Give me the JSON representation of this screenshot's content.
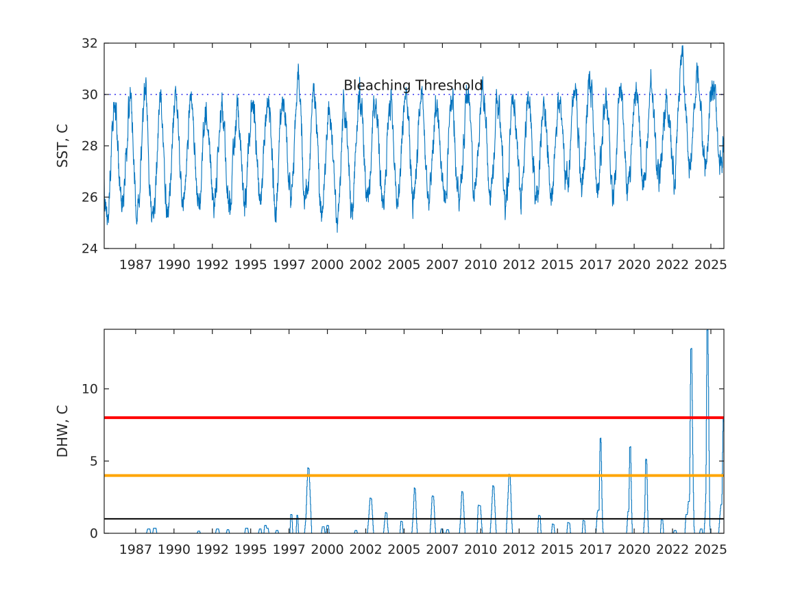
{
  "page": {
    "background": "#ffffff",
    "text_color": "#262626",
    "axis_color": "#1a1a1a"
  },
  "chart_data": [
    {
      "type": "line",
      "panel": "top",
      "title": "",
      "xlabel": "",
      "ylabel": "SST, C",
      "xlim": [
        1985.45,
        2025.85
      ],
      "ylim": [
        24,
        32
      ],
      "yticks": [
        24,
        26,
        28,
        30,
        32
      ],
      "xtick_positions": [
        1987.5,
        1990,
        1992.5,
        1995,
        1997.5,
        2000,
        2002.5,
        2005,
        2007.5,
        2010,
        2012.5,
        2015,
        2017.5,
        2020,
        2022.5,
        2025
      ],
      "xtick_labels": [
        "1987",
        "1990",
        "1992",
        "1995",
        "1997",
        "2000",
        "2002",
        "2005",
        "2007",
        "2010",
        "2012",
        "2015",
        "2017",
        "2020",
        "2022",
        "2025"
      ],
      "grid": false,
      "legend": null,
      "annotations": [
        {
          "text": "Bleaching Threshold",
          "x": 2005.6,
          "y": 30.17
        }
      ],
      "reference_lines": [
        {
          "y": 30,
          "color": "#4d4df0",
          "style": "dotted",
          "width": 1.8,
          "name": "bleaching-threshold-dotted-line"
        }
      ],
      "series": [
        {
          "name": "SST",
          "color": "#0072BD",
          "width": 1.1,
          "kind": "seasonal_envelope",
          "synthesis": {
            "start": 1985.45,
            "end": 2025.85,
            "samples_per_year": 72,
            "peak_phase": 0.12,
            "years": [
              1985,
              1986,
              1987,
              1988,
              1989,
              1990,
              1991,
              1992,
              1993,
              1994,
              1995,
              1996,
              1997,
              1998,
              1999,
              2000,
              2001,
              2002,
              2003,
              2004,
              2005,
              2006,
              2007,
              2008,
              2009,
              2010,
              2011,
              2012,
              2013,
              2014,
              2015,
              2016,
              2017,
              2018,
              2019,
              2020,
              2021,
              2022,
              2023,
              2024,
              2025
            ],
            "summer_max": [
              29.2,
              29.4,
              29.6,
              30.2,
              29.5,
              29.6,
              29.5,
              29.3,
              29.4,
              29.5,
              29.7,
              30.0,
              29.7,
              30.3,
              29.9,
              29.6,
              29.4,
              30.1,
              29.8,
              29.6,
              30.1,
              29.8,
              29.9,
              29.7,
              30.0,
              30.4,
              29.9,
              29.7,
              29.8,
              29.6,
              29.8,
              30.0,
              30.5,
              29.7,
              30.1,
              30.4,
              30.0,
              29.6,
              31.2,
              30.9,
              30.3
            ],
            "winter_min": [
              25.9,
              25.6,
              25.4,
              25.2,
              24.9,
              25.6,
              25.9,
              25.7,
              26.0,
              25.8,
              25.7,
              26.1,
              25.9,
              26.0,
              25.4,
              25.2,
              25.1,
              26.0,
              25.8,
              25.9,
              25.8,
              26.0,
              25.7,
              25.7,
              26.0,
              26.3,
              25.7,
              25.9,
              26.0,
              26.1,
              26.2,
              26.4,
              26.2,
              26.1,
              26.3,
              26.5,
              26.6,
              26.6,
              27.0,
              27.2,
              27.3
            ],
            "noise": {
              "seed": 13,
              "persistence": 0.72,
              "innovation": 0.85,
              "jitter": 0.3
            }
          }
        }
      ]
    },
    {
      "type": "line",
      "panel": "bottom",
      "title": "",
      "xlabel": "",
      "ylabel": "DHW, C",
      "xlim": [
        1985.45,
        2025.85
      ],
      "ylim": [
        0,
        14.12
      ],
      "yticks": [
        0,
        5,
        10
      ],
      "xtick_positions": [
        1987.5,
        1990,
        1992.5,
        1995,
        1997.5,
        2000,
        2002.5,
        2005,
        2007.5,
        2010,
        2012.5,
        2015,
        2017.5,
        2020,
        2022.5,
        2025
      ],
      "xtick_labels": [
        "1987",
        "1990",
        "1992",
        "1995",
        "1997",
        "2000",
        "2002",
        "2005",
        "2007",
        "2010",
        "2012",
        "2015",
        "2017",
        "2020",
        "2022",
        "2025"
      ],
      "grid": false,
      "legend": null,
      "annotations": [],
      "reference_lines": [
        {
          "y": 8,
          "color": "#ff0000",
          "style": "solid",
          "width": 4,
          "name": "red-line-8"
        },
        {
          "y": 4,
          "color": "#ffa500",
          "style": "solid",
          "width": 4,
          "name": "orange-line-4"
        },
        {
          "y": 1,
          "color": "#000000",
          "style": "solid",
          "width": 2,
          "name": "black-line-1"
        }
      ],
      "series": [
        {
          "name": "DHW",
          "color": "#0072BD",
          "width": 1.1,
          "kind": "points",
          "points": [
            [
              1985.45,
              0
            ],
            [
              1988.2,
              0
            ],
            [
              1988.27,
              0.3
            ],
            [
              1988.42,
              0.3
            ],
            [
              1988.47,
              0
            ],
            [
              1988.6,
              0
            ],
            [
              1988.66,
              0.35
            ],
            [
              1988.82,
              0.35
            ],
            [
              1988.87,
              0
            ],
            [
              1991.5,
              0
            ],
            [
              1991.56,
              0.15
            ],
            [
              1991.66,
              0.15
            ],
            [
              1991.71,
              0
            ],
            [
              1992.7,
              0
            ],
            [
              1992.76,
              0.3
            ],
            [
              1992.9,
              0.3
            ],
            [
              1992.95,
              0
            ],
            [
              1993.4,
              0
            ],
            [
              1993.46,
              0.25
            ],
            [
              1993.56,
              0.25
            ],
            [
              1993.61,
              0
            ],
            [
              1994.6,
              0
            ],
            [
              1994.66,
              0.35
            ],
            [
              1994.8,
              0.35
            ],
            [
              1994.85,
              0
            ],
            [
              1995.5,
              0
            ],
            [
              1995.56,
              0.3
            ],
            [
              1995.66,
              0.3
            ],
            [
              1995.71,
              0
            ],
            [
              1995.85,
              0
            ],
            [
              1995.9,
              0.55
            ],
            [
              1996.0,
              0.55
            ],
            [
              1996.03,
              0.35
            ],
            [
              1996.13,
              0.35
            ],
            [
              1996.18,
              0
            ],
            [
              1996.6,
              0
            ],
            [
              1996.66,
              0.2
            ],
            [
              1996.76,
              0.2
            ],
            [
              1996.81,
              0
            ],
            [
              1997.55,
              0
            ],
            [
              1997.6,
              1.3
            ],
            [
              1997.68,
              1.3
            ],
            [
              1997.73,
              0
            ],
            [
              1997.95,
              0
            ],
            [
              1998.0,
              1.25
            ],
            [
              1998.06,
              1.25
            ],
            [
              1998.11,
              0
            ],
            [
              1998.5,
              0
            ],
            [
              1998.6,
              1.2
            ],
            [
              1998.66,
              3.2
            ],
            [
              1998.72,
              4.55
            ],
            [
              1998.8,
              4.45
            ],
            [
              1998.9,
              1.8
            ],
            [
              1998.97,
              0
            ],
            [
              1999.6,
              0
            ],
            [
              1999.66,
              0.45
            ],
            [
              1999.78,
              0.45
            ],
            [
              1999.83,
              0
            ],
            [
              1999.9,
              0
            ],
            [
              1999.96,
              0.55
            ],
            [
              2000.06,
              0.55
            ],
            [
              2000.11,
              0
            ],
            [
              2001.75,
              0
            ],
            [
              2001.8,
              0.2
            ],
            [
              2001.9,
              0.2
            ],
            [
              2001.95,
              0
            ],
            [
              2002.6,
              0
            ],
            [
              2002.7,
              1.3
            ],
            [
              2002.77,
              2.45
            ],
            [
              2002.87,
              2.4
            ],
            [
              2002.95,
              0.9
            ],
            [
              2003.0,
              0
            ],
            [
              2003.65,
              0
            ],
            [
              2003.72,
              0.8
            ],
            [
              2003.78,
              1.45
            ],
            [
              2003.87,
              1.4
            ],
            [
              2003.92,
              0.5
            ],
            [
              2003.97,
              0
            ],
            [
              2004.72,
              0
            ],
            [
              2004.78,
              0.85
            ],
            [
              2004.88,
              0.8
            ],
            [
              2004.93,
              0
            ],
            [
              2005.5,
              0
            ],
            [
              2005.6,
              1.6
            ],
            [
              2005.66,
              3.15
            ],
            [
              2005.73,
              3.05
            ],
            [
              2005.8,
              1.0
            ],
            [
              2005.85,
              0
            ],
            [
              2006.68,
              0
            ],
            [
              2006.74,
              0.9
            ],
            [
              2006.82,
              2.6
            ],
            [
              2006.92,
              2.55
            ],
            [
              2007.0,
              0.8
            ],
            [
              2007.05,
              0
            ],
            [
              2007.35,
              0
            ],
            [
              2007.41,
              0.3
            ],
            [
              2007.51,
              0.3
            ],
            [
              2007.56,
              0
            ],
            [
              2007.72,
              0
            ],
            [
              2007.78,
              0.25
            ],
            [
              2007.88,
              0.25
            ],
            [
              2007.93,
              0
            ],
            [
              2008.6,
              0
            ],
            [
              2008.68,
              1.2
            ],
            [
              2008.75,
              2.9
            ],
            [
              2008.83,
              2.85
            ],
            [
              2008.92,
              0.9
            ],
            [
              2008.97,
              0
            ],
            [
              2009.75,
              0
            ],
            [
              2009.82,
              1.95
            ],
            [
              2009.97,
              1.9
            ],
            [
              2010.05,
              0.6
            ],
            [
              2010.1,
              0
            ],
            [
              2010.6,
              0
            ],
            [
              2010.7,
              1.6
            ],
            [
              2010.77,
              3.3
            ],
            [
              2010.85,
              3.25
            ],
            [
              2010.95,
              1.0
            ],
            [
              2011.0,
              0
            ],
            [
              2011.65,
              0
            ],
            [
              2011.75,
              2.2
            ],
            [
              2011.83,
              4.1
            ],
            [
              2011.91,
              4.0
            ],
            [
              2012.0,
              1.2
            ],
            [
              2012.06,
              0
            ],
            [
              2013.7,
              0
            ],
            [
              2013.76,
              1.25
            ],
            [
              2013.87,
              1.2
            ],
            [
              2013.92,
              0
            ],
            [
              2014.6,
              0
            ],
            [
              2014.66,
              0.65
            ],
            [
              2014.76,
              0.6
            ],
            [
              2014.81,
              0
            ],
            [
              2015.6,
              0
            ],
            [
              2015.66,
              0.75
            ],
            [
              2015.79,
              0.7
            ],
            [
              2015.84,
              0
            ],
            [
              2016.6,
              0
            ],
            [
              2016.66,
              0.9
            ],
            [
              2016.76,
              0.85
            ],
            [
              2016.81,
              0
            ],
            [
              2017.5,
              0
            ],
            [
              2017.58,
              1.4
            ],
            [
              2017.63,
              1.6
            ],
            [
              2017.7,
              1.6
            ],
            [
              2017.77,
              6.55
            ],
            [
              2017.83,
              6.6
            ],
            [
              2017.89,
              2.5
            ],
            [
              2017.94,
              0.4
            ],
            [
              2017.98,
              0
            ],
            [
              2019.5,
              0
            ],
            [
              2019.58,
              1.5
            ],
            [
              2019.64,
              1.5
            ],
            [
              2019.7,
              5.95
            ],
            [
              2019.76,
              6.0
            ],
            [
              2019.82,
              2.0
            ],
            [
              2019.87,
              0
            ],
            [
              2020.6,
              0
            ],
            [
              2020.68,
              1.4
            ],
            [
              2020.74,
              5.15
            ],
            [
              2020.81,
              5.1
            ],
            [
              2020.88,
              1.2
            ],
            [
              2020.93,
              0
            ],
            [
              2021.7,
              0
            ],
            [
              2021.76,
              0.95
            ],
            [
              2021.86,
              0.9
            ],
            [
              2021.91,
              0
            ],
            [
              2022.55,
              0
            ],
            [
              2022.61,
              0.2
            ],
            [
              2022.71,
              0.2
            ],
            [
              2022.76,
              0
            ],
            [
              2023.3,
              0
            ],
            [
              2023.36,
              1.3
            ],
            [
              2023.46,
              1.3
            ],
            [
              2023.52,
              2.2
            ],
            [
              2023.6,
              2.2
            ],
            [
              2023.68,
              12.75
            ],
            [
              2023.74,
              12.8
            ],
            [
              2023.82,
              5.0
            ],
            [
              2023.89,
              0.5
            ],
            [
              2023.93,
              0
            ],
            [
              2024.25,
              0
            ],
            [
              2024.31,
              0.3
            ],
            [
              2024.41,
              0.3
            ],
            [
              2024.46,
              0
            ],
            [
              2024.55,
              0
            ],
            [
              2024.62,
              1.4
            ],
            [
              2024.67,
              3.0
            ],
            [
              2024.74,
              14.3
            ],
            [
              2024.8,
              14.2
            ],
            [
              2024.87,
              6.0
            ],
            [
              2024.93,
              0.5
            ],
            [
              2024.97,
              0
            ],
            [
              2025.5,
              0
            ],
            [
              2025.6,
              1.5
            ],
            [
              2025.65,
              2.0
            ],
            [
              2025.71,
              2.0
            ],
            [
              2025.79,
              8.05
            ],
            [
              2025.83,
              8.0
            ],
            [
              2025.85,
              6.8
            ]
          ]
        }
      ]
    }
  ]
}
